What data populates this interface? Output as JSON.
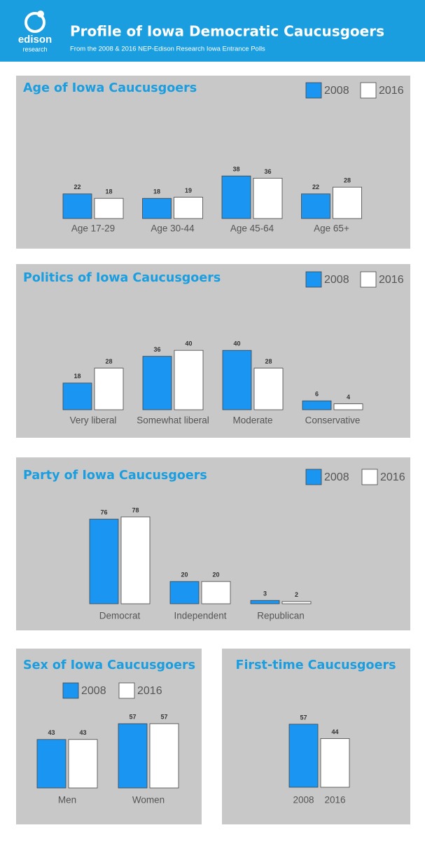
{
  "header": {
    "logo_top": "edison",
    "logo_bottom": "research",
    "title": "Profile of Iowa Democratic Caucusgoers",
    "subtitle": "From the 2008 & 2016 NEP-Edison Research Iowa Entrance Polls"
  },
  "chart_data": [
    {
      "type": "bar",
      "title": "Age of Iowa Caucusgoers",
      "categories": [
        "Age 17-29",
        "Age 30-44",
        "Age 45-64",
        "Age 65+"
      ],
      "series": [
        {
          "name": "2008",
          "color": "#1a96f2",
          "values": [
            22,
            18,
            38,
            22
          ]
        },
        {
          "name": "2016",
          "color": "#ffffff",
          "values": [
            18,
            19,
            36,
            28
          ]
        }
      ]
    },
    {
      "type": "bar",
      "title": "Politics of Iowa Caucusgoers",
      "categories": [
        "Very liberal",
        "Somewhat liberal",
        "Moderate",
        "Conservative"
      ],
      "series": [
        {
          "name": "2008",
          "color": "#1a96f2",
          "values": [
            18,
            36,
            40,
            6
          ]
        },
        {
          "name": "2016",
          "color": "#ffffff",
          "values": [
            28,
            40,
            28,
            4
          ]
        }
      ]
    },
    {
      "type": "bar",
      "title": "Party of Iowa Caucusgoers",
      "categories": [
        "Democrat",
        "Independent",
        "Republican"
      ],
      "series": [
        {
          "name": "2008",
          "color": "#1a96f2",
          "values": [
            76,
            20,
            3
          ]
        },
        {
          "name": "2016",
          "color": "#ffffff",
          "values": [
            78,
            20,
            2
          ]
        }
      ]
    },
    {
      "type": "bar",
      "title": "Sex of Iowa Caucusgoers",
      "categories": [
        "Men",
        "Women"
      ],
      "series": [
        {
          "name": "2008",
          "color": "#1a96f2",
          "values": [
            43,
            57
          ]
        },
        {
          "name": "2016",
          "color": "#ffffff",
          "values": [
            43,
            57
          ]
        }
      ]
    },
    {
      "type": "bar",
      "title": "First-time Caucusgoers",
      "categories": [
        "2008",
        "2016"
      ],
      "values": [
        57,
        44
      ],
      "colors": [
        "#1a96f2",
        "#ffffff"
      ]
    }
  ]
}
